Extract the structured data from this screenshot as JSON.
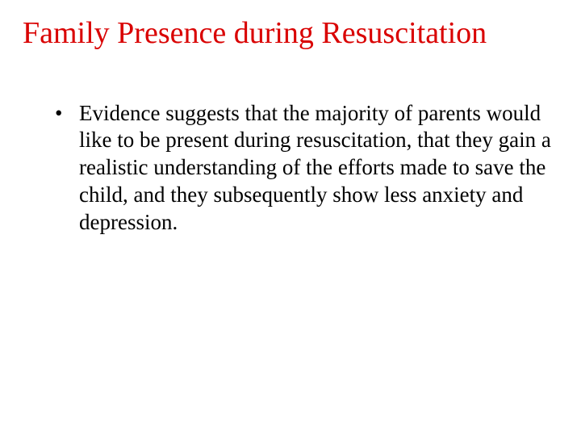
{
  "slide": {
    "title": "Family Presence during Resuscitation",
    "title_color": "#d90000",
    "body_color": "#000000",
    "background_color": "#ffffff",
    "title_fontsize": 38,
    "body_fontsize": 27,
    "font_family": "Times New Roman",
    "bullets": [
      "Evidence suggests that the majority of parents would like to be present during resuscitation, that they gain a realistic understanding of the efforts made to save the child, and they subsequently show less anxiety and depression."
    ]
  }
}
